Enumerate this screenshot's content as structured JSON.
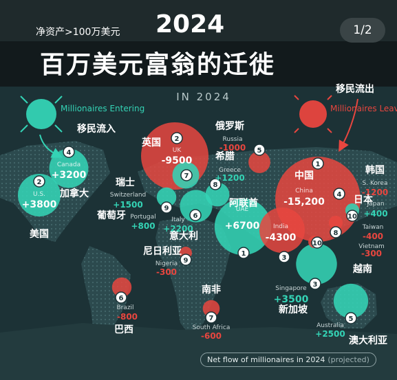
{
  "header": {
    "subtitle_cn": "净资产>100万美元",
    "year": "2024",
    "page_indicator": "1/2",
    "title_cn": "百万美元富翁的迁徙",
    "in_year": "IN 2024"
  },
  "legend": {
    "entering_en": "Millionaires Entering",
    "entering_cn": "移民流入",
    "leaving_en": "Millionaires Leaving",
    "leaving_cn": "移民流出",
    "footer_label": "Net flow of millionaires in 2024",
    "footer_note": "(projected)"
  },
  "colors": {
    "entering": "#34d3b5",
    "leaving": "#e8463f",
    "background": "#1c3236",
    "continent": "#2c4a4e"
  },
  "chart_data": {
    "type": "bubble-map",
    "title": "2024",
    "series": [
      {
        "name": "Millionaires Entering",
        "color": "#34d3b5"
      },
      {
        "name": "Millionaires Leaving",
        "color": "#e8463f"
      }
    ],
    "points": [
      {
        "country_en": "UAE",
        "country_cn": "阿联酋",
        "value": 6700,
        "value_label": "+6700",
        "rank": "1",
        "series": "entering"
      },
      {
        "country_en": "U.S.",
        "country_cn": "美国",
        "value": 3800,
        "value_label": "+3800",
        "rank": "2",
        "series": "entering"
      },
      {
        "country_en": "Singapore",
        "country_cn": "新加坡",
        "value": 3500,
        "value_label": "+3500",
        "rank": "3",
        "series": "entering"
      },
      {
        "country_en": "Canada",
        "country_cn": "加拿大",
        "value": 3200,
        "value_label": "+3200",
        "rank": "4",
        "series": "entering"
      },
      {
        "country_en": "Australia",
        "country_cn": "澳大利亚",
        "value": 2500,
        "value_label": "+2500",
        "rank": "5",
        "series": "entering"
      },
      {
        "country_en": "Italy",
        "country_cn": "意大利",
        "value": 2200,
        "value_label": "+2200",
        "rank": "6",
        "series": "entering"
      },
      {
        "country_en": "Switzerland",
        "country_cn": "瑞士",
        "value": 1500,
        "value_label": "+1500",
        "rank": "7",
        "series": "entering"
      },
      {
        "country_en": "Greece",
        "country_cn": "希腊",
        "value": 1200,
        "value_label": "+1200",
        "rank": "8",
        "series": "entering"
      },
      {
        "country_en": "Portugal",
        "country_cn": "葡萄牙",
        "value": 800,
        "value_label": "+800",
        "rank": "9",
        "series": "entering"
      },
      {
        "country_en": "Japan",
        "country_cn": "日本",
        "value": 400,
        "value_label": "+400",
        "rank": "10",
        "series": "entering"
      },
      {
        "country_en": "China",
        "country_cn": "中国",
        "value": -15200,
        "value_label": "-15,200",
        "rank": "1",
        "series": "leaving"
      },
      {
        "country_en": "UK",
        "country_cn": "英国",
        "value": -9500,
        "value_label": "-9500",
        "rank": "2",
        "series": "leaving"
      },
      {
        "country_en": "India",
        "country_cn": "",
        "value": -4300,
        "value_label": "-4300",
        "rank": "3",
        "series": "leaving"
      },
      {
        "country_en": "S. Korea",
        "country_cn": "韩国",
        "value": -1200,
        "value_label": "-1200",
        "rank": "4",
        "series": "leaving"
      },
      {
        "country_en": "Russia",
        "country_cn": "俄罗斯",
        "value": -1000,
        "value_label": "-1000",
        "rank": "5",
        "series": "leaving"
      },
      {
        "country_en": "Brazil",
        "country_cn": "巴西",
        "value": -800,
        "value_label": "-800",
        "rank": "6",
        "series": "leaving"
      },
      {
        "country_en": "South Africa",
        "country_cn": "南非",
        "value": -600,
        "value_label": "-600",
        "rank": "7",
        "series": "leaving"
      },
      {
        "country_en": "Taiwan",
        "country_cn": "",
        "value": -400,
        "value_label": "-400",
        "rank": "8",
        "series": "leaving"
      },
      {
        "country_en": "Nigeria",
        "country_cn": "尼日利亚",
        "value": -300,
        "value_label": "-300",
        "rank": "9",
        "series": "leaving"
      },
      {
        "country_en": "Vietnam",
        "country_cn": "越南",
        "value": -300,
        "value_label": "-300",
        "rank": "10",
        "series": "leaving"
      }
    ]
  }
}
